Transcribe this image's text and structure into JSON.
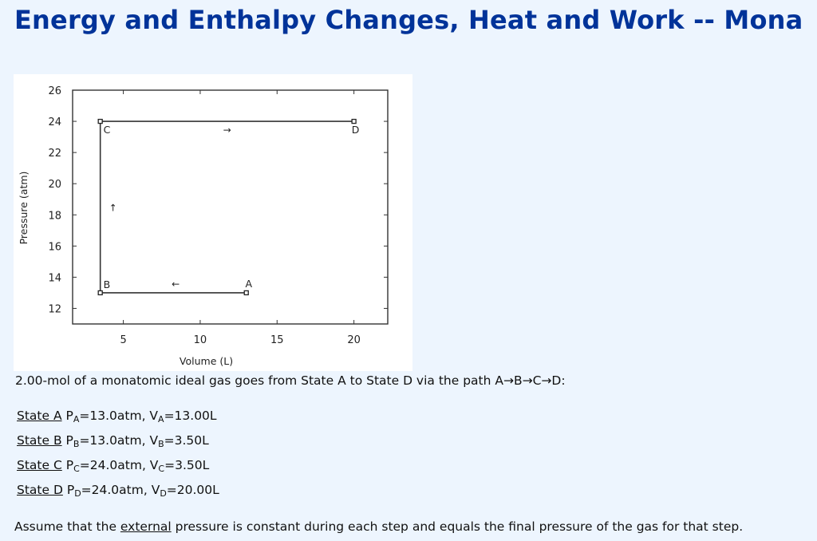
{
  "page": {
    "title": "Energy and Enthalpy Changes, Heat and Work -- Mona",
    "background": "#edf5fe",
    "title_color": "#003399"
  },
  "problem": {
    "intro": "2.00-mol of a monatomic ideal gas goes from State A to State D via the path A→B→C→D:",
    "states": [
      {
        "label": "State A",
        "P_sub": "A",
        "P_val": "=13.0atm, ",
        "V_sub": "A",
        "V_val": "=13.00L"
      },
      {
        "label": "State B",
        "P_sub": "B",
        "P_val": "=13.0atm, ",
        "V_sub": "B",
        "V_val": "=3.50L"
      },
      {
        "label": "State C",
        "P_sub": "C",
        "P_val": "=24.0atm, ",
        "V_sub": "C",
        "V_val": "=3.50L"
      },
      {
        "label": "State D",
        "P_sub": "D",
        "P_val": "=24.0atm, ",
        "V_sub": "D",
        "V_val": "=20.00L"
      }
    ],
    "assume_before": "Assume that the ",
    "assume_link": "external",
    "assume_after": " pressure is constant during each step and equals the final pressure of the gas for that step."
  },
  "chart_data": {
    "type": "line",
    "title": "",
    "xlabel": "Volume (L)",
    "ylabel": "Pressure (atm)",
    "xlim": [
      1.7,
      22.2
    ],
    "ylim": [
      11,
      26
    ],
    "xticks": [
      5,
      10,
      15,
      20
    ],
    "yticks": [
      12,
      14,
      16,
      18,
      20,
      22,
      24,
      26
    ],
    "grid": false,
    "legend": null,
    "series": [
      {
        "name": "path A→B→C→D",
        "points": [
          {
            "label": "A",
            "V": 13.0,
            "P": 13.0
          },
          {
            "label": "B",
            "V": 3.5,
            "P": 13.0
          },
          {
            "label": "C",
            "V": 3.5,
            "P": 24.0
          },
          {
            "label": "D",
            "V": 20.0,
            "P": 24.0
          }
        ]
      }
    ],
    "annotations": [
      {
        "text": "←",
        "between": [
          "A",
          "B"
        ]
      },
      {
        "text": "↑",
        "between": [
          "B",
          "C"
        ]
      },
      {
        "text": "→",
        "between": [
          "C",
          "D"
        ]
      }
    ]
  }
}
